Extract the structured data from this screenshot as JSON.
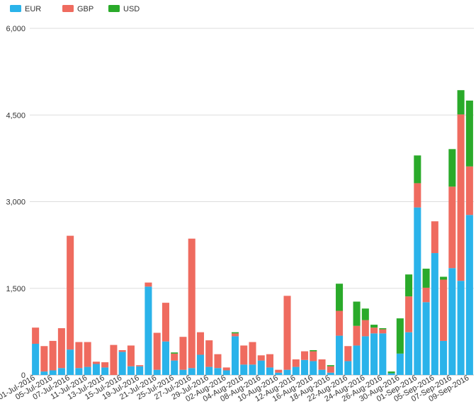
{
  "chart_data": {
    "type": "bar",
    "stacked": true,
    "legend_position": "top-left",
    "grid": true,
    "ylim": [
      0,
      6000
    ],
    "yticks": [
      0,
      1500,
      3000,
      4500,
      6000
    ],
    "ytick_labels": [
      "0",
      "1,500",
      "3,000",
      "4,500",
      "6,000"
    ],
    "colors": {
      "EUR": "#2ab3ea",
      "GBP": "#ef6b5f",
      "USD": "#2aaa2a"
    },
    "categories": [
      "01-Jul-2016",
      "04-Jul-2016",
      "05-Jul-2016",
      "06-Jul-2016",
      "07-Jul-2016",
      "08-Jul-2016",
      "11-Jul-2016",
      "12-Jul-2016",
      "13-Jul-2016",
      "14-Jul-2016",
      "15-Jul-2016",
      "18-Jul-2016",
      "19-Jul-2016",
      "20-Jul-2016",
      "21-Jul-2016",
      "22-Jul-2016",
      "25-Jul-2016",
      "26-Jul-2016",
      "27-Jul-2016",
      "28-Jul-2016",
      "29-Jul-2016",
      "01-Aug-2016",
      "02-Aug-2016",
      "03-Aug-2016",
      "04-Aug-2016",
      "05-Aug-2016",
      "08-Aug-2016",
      "09-Aug-2016",
      "10-Aug-2016",
      "11-Aug-2016",
      "12-Aug-2016",
      "15-Aug-2016",
      "16-Aug-2016",
      "17-Aug-2016",
      "18-Aug-2016",
      "19-Aug-2016",
      "22-Aug-2016",
      "23-Aug-2016",
      "24-Aug-2016",
      "25-Aug-2016",
      "26-Aug-2016",
      "29-Aug-2016",
      "30-Aug-2016",
      "31-Aug-2016",
      "01-Sep-2016",
      "02-Sep-2016",
      "05-Sep-2016",
      "06-Sep-2016",
      "07-Sep-2016",
      "08-Sep-2016",
      "09-Sep-2016"
    ],
    "shown_labels": [
      "01-Jul-2016",
      "05-Jul-2016",
      "07-Jul-2016",
      "11-Jul-2016",
      "13-Jul-2016",
      "15-Jul-2016",
      "19-Jul-2016",
      "21-Jul-2016",
      "25-Jul-2016",
      "27-Jul-2016",
      "29-Jul-2016",
      "02-Aug-2016",
      "04-Aug-2016",
      "08-Aug-2016",
      "10-Aug-2016",
      "12-Aug-2016",
      "16-Aug-2016",
      "18-Aug-2016",
      "22-Aug-2016",
      "24-Aug-2016",
      "26-Aug-2016",
      "30-Aug-2016",
      "01-Sep-2016",
      "05-Sep-2016",
      "07-Sep-2016",
      "09-Sep-2016"
    ],
    "series": [
      {
        "name": "EUR",
        "values": [
          540,
          60,
          80,
          120,
          440,
          120,
          140,
          190,
          130,
          0,
          400,
          150,
          150,
          1530,
          90,
          580,
          250,
          90,
          120,
          350,
          140,
          120,
          80,
          670,
          180,
          180,
          250,
          130,
          40,
          90,
          140,
          260,
          240,
          90,
          40,
          680,
          240,
          510,
          670,
          720,
          720,
          30,
          370,
          740,
          2900,
          1260,
          2110,
          590,
          1850,
          1630,
          2770
        ]
      },
      {
        "name": "GBP",
        "values": [
          280,
          440,
          510,
          690,
          1970,
          450,
          430,
          40,
          90,
          520,
          30,
          360,
          20,
          70,
          640,
          670,
          120,
          570,
          2240,
          390,
          460,
          240,
          50,
          50,
          330,
          390,
          90,
          230,
          50,
          1280,
          130,
          150,
          170,
          180,
          110,
          430,
          260,
          340,
          280,
          100,
          70,
          0,
          0,
          620,
          420,
          250,
          550,
          1060,
          1410,
          2880,
          840
        ]
      },
      {
        "name": "USD",
        "values": [
          0,
          0,
          0,
          0,
          0,
          0,
          0,
          0,
          0,
          0,
          0,
          0,
          0,
          0,
          0,
          0,
          20,
          0,
          0,
          0,
          0,
          0,
          0,
          20,
          0,
          0,
          0,
          0,
          0,
          0,
          0,
          0,
          20,
          0,
          20,
          470,
          0,
          420,
          200,
          50,
          20,
          30,
          610,
          380,
          480,
          330,
          0,
          50,
          650,
          420,
          1140
        ]
      }
    ]
  },
  "legend": {
    "items": [
      "EUR",
      "GBP",
      "USD"
    ]
  }
}
